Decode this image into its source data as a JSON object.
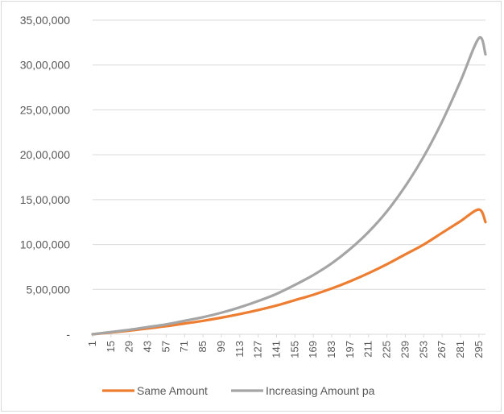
{
  "chart_data": {
    "type": "line",
    "x_start": 1,
    "x_end": 300,
    "x_step_labels": 14,
    "x_tick_labels": [
      "1",
      "15",
      "29",
      "43",
      "57",
      "71",
      "85",
      "99",
      "113",
      "127",
      "141",
      "155",
      "169",
      "183",
      "197",
      "211",
      "225",
      "239",
      "253",
      "267",
      "281",
      "295"
    ],
    "y_tick_labels": [
      "-",
      "5,00,000",
      "10,00,000",
      "15,00,000",
      "20,00,000",
      "25,00,000",
      "30,00,000",
      "35,00,000"
    ],
    "ylim": [
      0,
      3500000
    ],
    "y_tick_step": 500000,
    "grid": "horizontal",
    "legend": "bottom",
    "title": "",
    "xlabel": "",
    "ylabel": "",
    "series": [
      {
        "name": "Same Amount",
        "color": "#ed7d31",
        "x": [
          1,
          15,
          29,
          43,
          57,
          71,
          85,
          99,
          113,
          127,
          141,
          155,
          169,
          183,
          197,
          211,
          225,
          239,
          253,
          267,
          281,
          295,
          300
        ],
        "values": [
          0,
          20000,
          40000,
          65000,
          90000,
          120000,
          150000,
          185000,
          225000,
          270000,
          320000,
          380000,
          440000,
          510000,
          590000,
          680000,
          780000,
          890000,
          1000000,
          1130000,
          1260000,
          1390000,
          1250000
        ]
      },
      {
        "name": "Increasing Amount pa",
        "color": "#a5a5a5",
        "x": [
          1,
          15,
          29,
          43,
          57,
          71,
          85,
          99,
          113,
          127,
          141,
          155,
          169,
          183,
          197,
          211,
          225,
          239,
          253,
          267,
          281,
          295,
          300
        ],
        "values": [
          0,
          25000,
          50000,
          80000,
          110000,
          150000,
          190000,
          240000,
          300000,
          370000,
          450000,
          550000,
          660000,
          790000,
          950000,
          1140000,
          1370000,
          1650000,
          1980000,
          2370000,
          2820000,
          3300000,
          3120000
        ]
      }
    ]
  }
}
